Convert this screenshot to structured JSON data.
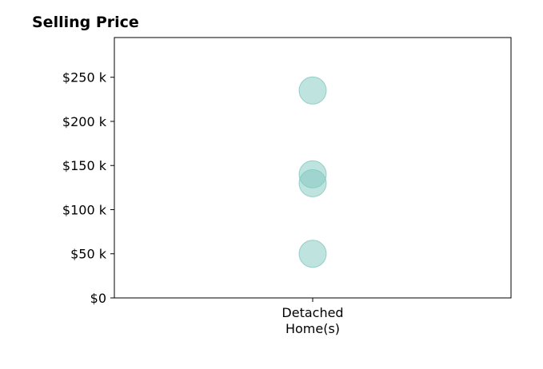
{
  "chart_data": {
    "type": "scatter",
    "title": "Selling Price",
    "xlabel": "",
    "ylabel": "",
    "categories": [
      "Detached\nHome(s)"
    ],
    "series": [
      {
        "category": "Detached\nHome(s)",
        "values": [
          235000,
          140000,
          130000,
          50000
        ]
      }
    ],
    "ylim": [
      0,
      295000
    ],
    "yticks": [
      0,
      50000,
      100000,
      150000,
      200000,
      250000
    ],
    "ytick_labels": [
      "$0",
      "$50 k",
      "$100 k",
      "$150 k",
      "$200 k",
      "$250 k"
    ],
    "grid": false,
    "legend": "none",
    "point_color": "#7fc8be",
    "point_opacity": 0.5
  }
}
